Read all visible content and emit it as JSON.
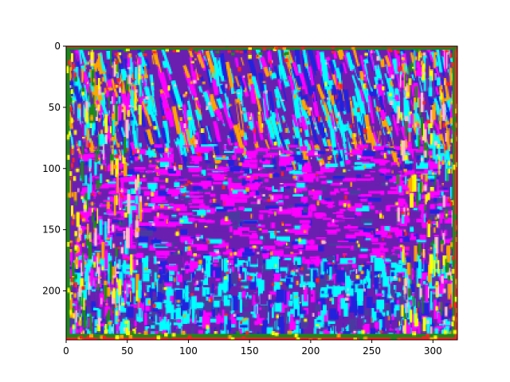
{
  "chart_data": {
    "type": "heatmap",
    "title": "",
    "xlabel": "",
    "ylabel": "",
    "image_width": 320,
    "image_height": 240,
    "xlim": [
      0,
      320
    ],
    "ylim": [
      240,
      0
    ],
    "x_ticks": [
      0,
      50,
      100,
      150,
      200,
      250,
      300
    ],
    "y_ticks": [
      0,
      50,
      100,
      150,
      200
    ],
    "grid": false,
    "legend": "none",
    "palette": [
      "#ff00ff",
      "#00ffff",
      "#6a1fb0",
      "#2222dd",
      "#ffa500",
      "#ffff00",
      "#1a8a1a",
      "#ff2020",
      "#ffc0cb",
      "#4a3aa0"
    ]
  }
}
